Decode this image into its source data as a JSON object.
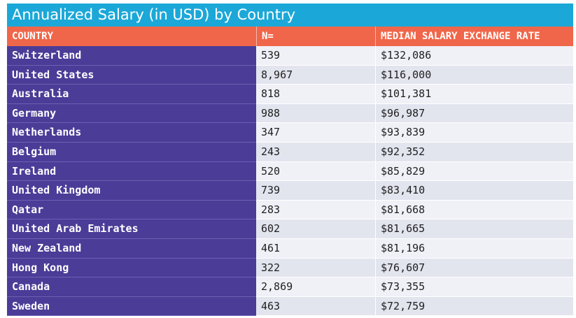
{
  "chart_data": {
    "type": "table",
    "title": "Annualized Salary (in USD) by Country",
    "columns": [
      "COUNTRY",
      "N=",
      "MEDIAN SALARY EXCHANGE RATE"
    ],
    "rows": [
      [
        "Switzerland",
        "539",
        "$132,086"
      ],
      [
        "United States",
        "8,967",
        "$116,000"
      ],
      [
        "Australia",
        "818",
        "$101,381"
      ],
      [
        "Germany",
        "988",
        "$96,987"
      ],
      [
        "Netherlands",
        "347",
        "$93,839"
      ],
      [
        "Belgium",
        "243",
        "$92,352"
      ],
      [
        "Ireland",
        "520",
        "$85,829"
      ],
      [
        "United Kingdom",
        "739",
        "$83,410"
      ],
      [
        "Qatar",
        "283",
        "$81,668"
      ],
      [
        "United Arab Emirates",
        "602",
        "$81,665"
      ],
      [
        "New Zealand",
        "461",
        "$81,196"
      ],
      [
        "Hong Kong",
        "322",
        "$76,607"
      ],
      [
        "Canada",
        "2,869",
        "$73,355"
      ],
      [
        "Sweden",
        "463",
        "$72,759"
      ]
    ],
    "colors": {
      "title_bg": "#1ba8d8",
      "header_bg": "#f0664a",
      "country_bg": "#4a3c97",
      "row_light": "#f0f1f7",
      "row_dark": "#e2e4ee"
    }
  }
}
